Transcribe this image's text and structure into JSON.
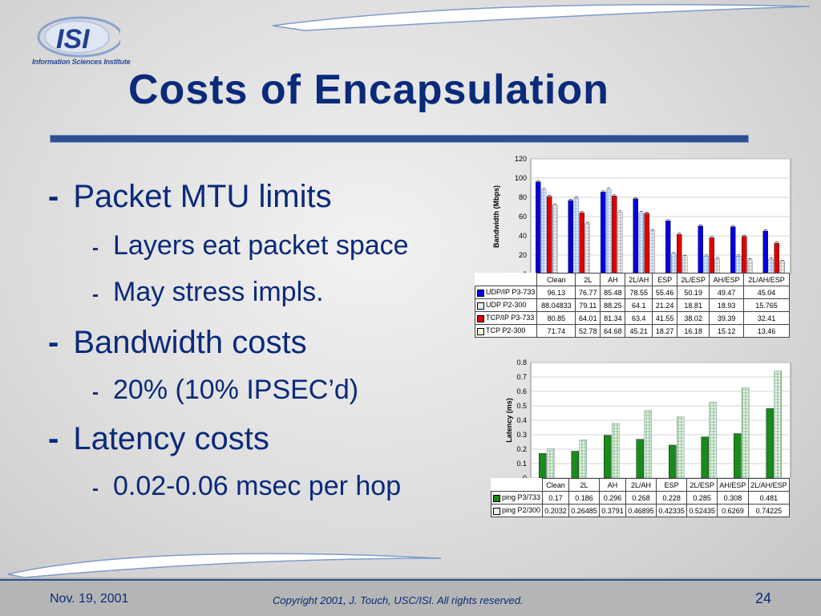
{
  "slide": {
    "title": "Costs of Encapsulation",
    "logo_text": "ISI",
    "logo_subtitle": "Information Sciences Institute",
    "bullets": [
      {
        "level": 1,
        "text": "Packet MTU limits"
      },
      {
        "level": 2,
        "text": "Layers eat packet space"
      },
      {
        "level": 2,
        "text": "May stress impls."
      },
      {
        "level": 1,
        "text": "Bandwidth costs"
      },
      {
        "level": 2,
        "text": "20% (10% IPSEC’d)"
      },
      {
        "level": 1,
        "text": "Latency costs"
      },
      {
        "level": 2,
        "text": "0.02-0.06 msec per hop"
      }
    ],
    "bullet_marker": "-",
    "footer": {
      "date": "Nov. 19, 2001",
      "copyright": "Copyright 2001, J. Touch, USC/ISI.  All rights reserved.",
      "page": "24"
    }
  },
  "chart_data": [
    {
      "type": "bar",
      "ylabel": "Bandwidth (Mbps)",
      "ylim": [
        0,
        120
      ],
      "yticks": [
        0,
        20,
        40,
        60,
        80,
        100,
        120
      ],
      "categories": [
        "Clean",
        "2L",
        "AH",
        "2L/AH",
        "ESP",
        "2L/ESP",
        "AH/ESP",
        "2L/AH/ESP"
      ],
      "series": [
        {
          "name": "UDP/IP P3-733",
          "values": [
            "96.13",
            "76.77",
            "85.48",
            "78.55",
            "55.46",
            "50.19",
            "49.47",
            "45.04"
          ],
          "color": "#0000e0",
          "pattern": "solid"
        },
        {
          "name": "UDP P2-300",
          "values": [
            "88.04833",
            "79.11",
            "88.25",
            "64.1",
            "21.24",
            "18.81",
            "18.93",
            "15.765"
          ],
          "color": "#ddeeff",
          "pattern": "hatch"
        },
        {
          "name": "TCP/IP P3-733",
          "values": [
            "80.85",
            "64.01",
            "81.34",
            "63.4",
            "41.55",
            "38.02",
            "39.39",
            "32.41"
          ],
          "color": "#e00000",
          "pattern": "solid"
        },
        {
          "name": "TCP P2-300",
          "values": [
            "71.74",
            "52.78",
            "64.68",
            "45.21",
            "18.27",
            "16.18",
            "15.12",
            "13.46"
          ],
          "color": "#fff0d8",
          "pattern": "hatch"
        }
      ],
      "legend": "table-below",
      "grid": true
    },
    {
      "type": "bar",
      "ylabel": "Latency (ms)",
      "ylim": [
        0,
        0.8
      ],
      "yticks": [
        "0",
        "0.1",
        "0.2",
        "0.3",
        "0.4",
        "0.5",
        "0.6",
        "0.7",
        "0.8"
      ],
      "categories": [
        "Clean",
        "2L",
        "AH",
        "2L/AH",
        "ESP",
        "2L/ESP",
        "AH/ESP",
        "2L/AH/ESP"
      ],
      "series": [
        {
          "name": "ping P3/733",
          "values": [
            "0.17",
            "0.186",
            "0.296",
            "0.268",
            "0.228",
            "0.285",
            "0.308",
            "0.481"
          ],
          "color": "#1a8a1a",
          "pattern": "solid"
        },
        {
          "name": "ping P2/300",
          "values": [
            "0.2032",
            "0.26485",
            "0.3791",
            "0.46895",
            "0.42335",
            "0.52435",
            "0.6269",
            "0.74225"
          ],
          "color": "#e6f5e6",
          "pattern": "hatch"
        }
      ],
      "legend": "table-below",
      "grid": true
    }
  ]
}
